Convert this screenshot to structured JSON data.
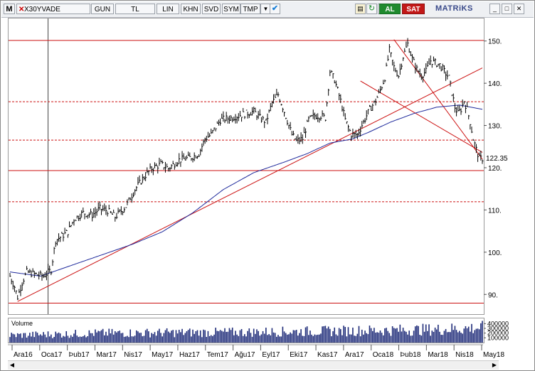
{
  "toolbar": {
    "app_letter": "M",
    "symbol": "X30YVADE",
    "buttons": [
      "GUN",
      "TL",
      "LIN",
      "KHN",
      "SVD",
      "SYM",
      "TMP"
    ],
    "buy_label": "AL",
    "sell_label": "SAT",
    "brand": "MATRiKS"
  },
  "colors": {
    "price": "#000000",
    "moving_average": "#1f2a9c",
    "lines": "#cc1111",
    "volume": "#1d2a78",
    "buy": "#1f8a2e",
    "sell": "#c21818"
  },
  "chart_data": {
    "type": "line",
    "price_label": "122.35",
    "y_ticks": [
      90,
      100,
      110,
      120,
      130,
      140,
      150
    ],
    "y_tick_labels": [
      "90.",
      "100.",
      "110.",
      "120.",
      "130.",
      "140.",
      "150."
    ],
    "ylim": [
      85.5,
      155.5
    ],
    "x_tick_labels": [
      "Ara16",
      "Oca17",
      "Þub17",
      "Mar17",
      "Nis17",
      "May17",
      "Haz17",
      "Tem17",
      "Ağu17",
      "Eyl17",
      "Eki17",
      "Kas17",
      "Ara17",
      "Oca18",
      "Þub18",
      "Mar18",
      "Nis18",
      "May18"
    ],
    "price_keypoints": [
      [
        0,
        94.5
      ],
      [
        3,
        92
      ],
      [
        5,
        89.5
      ],
      [
        8,
        93
      ],
      [
        11,
        95.5
      ],
      [
        16,
        95
      ],
      [
        22,
        94.5
      ],
      [
        27,
        96
      ],
      [
        30,
        103
      ],
      [
        34,
        104
      ],
      [
        38,
        105
      ],
      [
        42,
        108
      ],
      [
        48,
        109.5
      ],
      [
        54,
        109
      ],
      [
        59,
        110.5
      ],
      [
        64,
        110
      ],
      [
        69,
        108.5
      ],
      [
        76,
        111
      ],
      [
        82,
        115
      ],
      [
        88,
        118
      ],
      [
        93,
        120
      ],
      [
        99,
        121
      ],
      [
        104,
        120
      ],
      [
        111,
        122
      ],
      [
        118,
        122.5
      ],
      [
        124,
        123.5
      ],
      [
        128,
        127
      ],
      [
        132,
        128
      ],
      [
        138,
        131.5
      ],
      [
        145,
        132
      ],
      [
        150,
        132.5
      ],
      [
        155,
        133
      ],
      [
        160,
        133.5
      ],
      [
        164,
        132
      ],
      [
        168,
        131
      ],
      [
        172,
        135.5
      ],
      [
        176,
        137.5
      ],
      [
        180,
        133.5
      ],
      [
        185,
        128
      ],
      [
        188,
        126.5
      ],
      [
        192,
        127
      ],
      [
        196,
        131.5
      ],
      [
        200,
        132.5
      ],
      [
        204,
        132.5
      ],
      [
        207,
        132
      ],
      [
        210,
        143
      ],
      [
        213,
        141
      ],
      [
        217,
        136
      ],
      [
        220,
        131.5
      ],
      [
        224,
        128
      ],
      [
        228,
        128
      ],
      [
        232,
        131
      ],
      [
        236,
        134
      ],
      [
        240,
        136
      ],
      [
        243,
        138.5
      ],
      [
        246,
        141.5
      ],
      [
        249,
        148
      ],
      [
        252,
        144
      ],
      [
        255,
        142
      ],
      [
        258,
        146.5
      ],
      [
        261,
        149.5
      ],
      [
        264,
        146
      ],
      [
        267,
        143.5
      ],
      [
        270,
        142
      ],
      [
        273,
        143
      ],
      [
        276,
        145.5
      ],
      [
        279,
        145
      ],
      [
        282,
        144.5
      ],
      [
        285,
        143
      ],
      [
        288,
        141.5
      ],
      [
        290,
        138
      ],
      [
        292,
        134.5
      ],
      [
        294,
        133
      ],
      [
        296,
        134
      ],
      [
        298,
        136
      ],
      [
        300,
        134
      ],
      [
        302,
        131
      ],
      [
        304,
        127
      ],
      [
        306,
        124.5
      ],
      [
        308,
        122.35
      ]
    ],
    "price_noise": 1.0,
    "moving_average": [
      [
        0,
        95.5
      ],
      [
        20,
        94.5
      ],
      [
        40,
        97
      ],
      [
        60,
        99.5
      ],
      [
        80,
        102
      ],
      [
        100,
        105
      ],
      [
        120,
        109.5
      ],
      [
        140,
        115
      ],
      [
        160,
        119
      ],
      [
        180,
        121.5
      ],
      [
        195,
        123.5
      ],
      [
        210,
        126
      ],
      [
        225,
        127
      ],
      [
        235,
        128.5
      ],
      [
        250,
        131
      ],
      [
        265,
        133
      ],
      [
        280,
        134.5
      ],
      [
        295,
        135
      ],
      [
        310,
        134
      ]
    ],
    "volume_labels": [
      "400000",
      "300000",
      "200000",
      "100000"
    ],
    "volume_title": "Volume",
    "volume_max": 450000,
    "volume_keypoints": [
      [
        0,
        160000
      ],
      [
        60,
        210000
      ],
      [
        150,
        230000
      ],
      [
        220,
        260000
      ],
      [
        280,
        290000
      ],
      [
        310,
        330000
      ]
    ],
    "horizontal_lines": [
      {
        "y": 150.3,
        "style": "solid"
      },
      {
        "y": 135.8,
        "style": "dotted"
      },
      {
        "y": 126.7,
        "style": "dotted"
      },
      {
        "y": 119.5,
        "style": "solid"
      },
      {
        "y": 112.1,
        "style": "dotted"
      },
      {
        "y": 88.1,
        "style": "solid"
      }
    ],
    "trend_lines": [
      {
        "from": [
          5,
          88.5
        ],
        "to": [
          310,
          143.8
        ]
      },
      {
        "from": [
          252,
          150.5
        ],
        "to": [
          310,
          122.2
        ]
      },
      {
        "from": [
          230,
          140.7
        ],
        "to": [
          310,
          123.8
        ]
      }
    ],
    "vertical_line_x": 25
  }
}
